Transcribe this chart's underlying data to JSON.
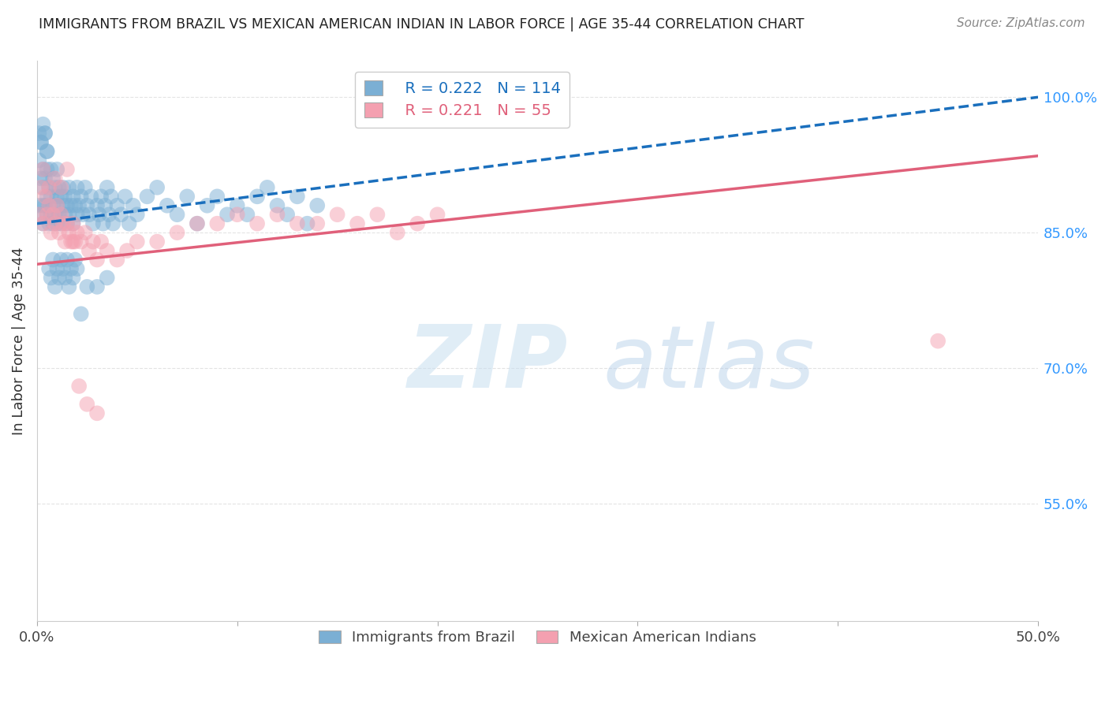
{
  "title": "IMMIGRANTS FROM BRAZIL VS MEXICAN AMERICAN INDIAN IN LABOR FORCE | AGE 35-44 CORRELATION CHART",
  "source": "Source: ZipAtlas.com",
  "ylabel": "In Labor Force | Age 35-44",
  "xlim": [
    0.0,
    0.5
  ],
  "ylim": [
    0.42,
    1.04
  ],
  "xticks": [
    0.0,
    0.1,
    0.2,
    0.3,
    0.4,
    0.5
  ],
  "yticks_right": [
    0.55,
    0.7,
    0.85,
    1.0
  ],
  "yticklabels_right": [
    "55.0%",
    "70.0%",
    "85.0%",
    "100.0%"
  ],
  "brazil_color": "#7bafd4",
  "mexico_color": "#f4a0b0",
  "brazil_line_color": "#1a6fbd",
  "mexico_line_color": "#e0607a",
  "brazil_R": 0.222,
  "brazil_N": 114,
  "mexico_R": 0.221,
  "mexico_N": 55,
  "legend_brazil": "Immigrants from Brazil",
  "legend_mexico": "Mexican American Indians",
  "background_color": "#ffffff",
  "grid_color": "#dddddd",
  "brazil_intercept": 0.86,
  "brazil_slope": 0.28,
  "mexico_intercept": 0.815,
  "mexico_slope": 0.24,
  "brazil_x": [
    0.001,
    0.001,
    0.002,
    0.002,
    0.002,
    0.003,
    0.003,
    0.003,
    0.003,
    0.004,
    0.004,
    0.004,
    0.005,
    0.005,
    0.005,
    0.005,
    0.006,
    0.006,
    0.006,
    0.007,
    0.007,
    0.007,
    0.008,
    0.008,
    0.008,
    0.009,
    0.009,
    0.01,
    0.01,
    0.01,
    0.01,
    0.011,
    0.011,
    0.012,
    0.012,
    0.013,
    0.013,
    0.014,
    0.014,
    0.015,
    0.015,
    0.016,
    0.016,
    0.017,
    0.018,
    0.018,
    0.019,
    0.02,
    0.02,
    0.021,
    0.022,
    0.023,
    0.024,
    0.025,
    0.026,
    0.027,
    0.028,
    0.03,
    0.031,
    0.032,
    0.033,
    0.034,
    0.035,
    0.036,
    0.037,
    0.038,
    0.04,
    0.042,
    0.044,
    0.046,
    0.048,
    0.05,
    0.055,
    0.06,
    0.065,
    0.07,
    0.075,
    0.08,
    0.085,
    0.09,
    0.095,
    0.1,
    0.105,
    0.11,
    0.115,
    0.12,
    0.125,
    0.13,
    0.135,
    0.14,
    0.001,
    0.002,
    0.003,
    0.004,
    0.005,
    0.006,
    0.007,
    0.008,
    0.009,
    0.01,
    0.011,
    0.012,
    0.013,
    0.014,
    0.015,
    0.016,
    0.017,
    0.018,
    0.019,
    0.02,
    0.022,
    0.025,
    0.03,
    0.035
  ],
  "brazil_y": [
    0.88,
    0.93,
    0.87,
    0.91,
    0.95,
    0.88,
    0.9,
    0.92,
    0.86,
    0.91,
    0.88,
    0.96,
    0.89,
    0.87,
    0.92,
    0.94,
    0.88,
    0.9,
    0.86,
    0.89,
    0.92,
    0.87,
    0.91,
    0.88,
    0.86,
    0.9,
    0.87,
    0.89,
    0.86,
    0.92,
    0.88,
    0.9,
    0.87,
    0.89,
    0.86,
    0.88,
    0.9,
    0.87,
    0.89,
    0.86,
    0.88,
    0.87,
    0.9,
    0.88,
    0.89,
    0.86,
    0.88,
    0.87,
    0.9,
    0.88,
    0.89,
    0.87,
    0.9,
    0.88,
    0.87,
    0.89,
    0.86,
    0.88,
    0.87,
    0.89,
    0.86,
    0.88,
    0.9,
    0.87,
    0.89,
    0.86,
    0.88,
    0.87,
    0.89,
    0.86,
    0.88,
    0.87,
    0.89,
    0.9,
    0.88,
    0.87,
    0.89,
    0.86,
    0.88,
    0.89,
    0.87,
    0.88,
    0.87,
    0.89,
    0.9,
    0.88,
    0.87,
    0.89,
    0.86,
    0.88,
    0.96,
    0.95,
    0.97,
    0.96,
    0.94,
    0.81,
    0.8,
    0.82,
    0.79,
    0.81,
    0.8,
    0.82,
    0.81,
    0.8,
    0.82,
    0.79,
    0.81,
    0.8,
    0.82,
    0.81,
    0.76,
    0.79,
    0.79,
    0.8
  ],
  "mexico_x": [
    0.001,
    0.002,
    0.003,
    0.004,
    0.005,
    0.006,
    0.007,
    0.008,
    0.009,
    0.01,
    0.011,
    0.012,
    0.013,
    0.014,
    0.015,
    0.016,
    0.017,
    0.018,
    0.019,
    0.02,
    0.022,
    0.024,
    0.026,
    0.028,
    0.03,
    0.032,
    0.035,
    0.04,
    0.045,
    0.05,
    0.06,
    0.07,
    0.08,
    0.09,
    0.1,
    0.11,
    0.12,
    0.13,
    0.14,
    0.15,
    0.16,
    0.17,
    0.18,
    0.19,
    0.2,
    0.45,
    0.003,
    0.006,
    0.009,
    0.012,
    0.015,
    0.018,
    0.021,
    0.025,
    0.03
  ],
  "mexico_y": [
    0.87,
    0.9,
    0.86,
    0.89,
    0.87,
    0.88,
    0.85,
    0.87,
    0.86,
    0.88,
    0.85,
    0.87,
    0.86,
    0.84,
    0.86,
    0.85,
    0.84,
    0.86,
    0.84,
    0.85,
    0.84,
    0.85,
    0.83,
    0.84,
    0.82,
    0.84,
    0.83,
    0.82,
    0.83,
    0.84,
    0.84,
    0.85,
    0.86,
    0.86,
    0.87,
    0.86,
    0.87,
    0.86,
    0.86,
    0.87,
    0.86,
    0.87,
    0.85,
    0.86,
    0.87,
    0.73,
    0.92,
    0.9,
    0.91,
    0.9,
    0.92,
    0.84,
    0.68,
    0.66,
    0.65
  ]
}
